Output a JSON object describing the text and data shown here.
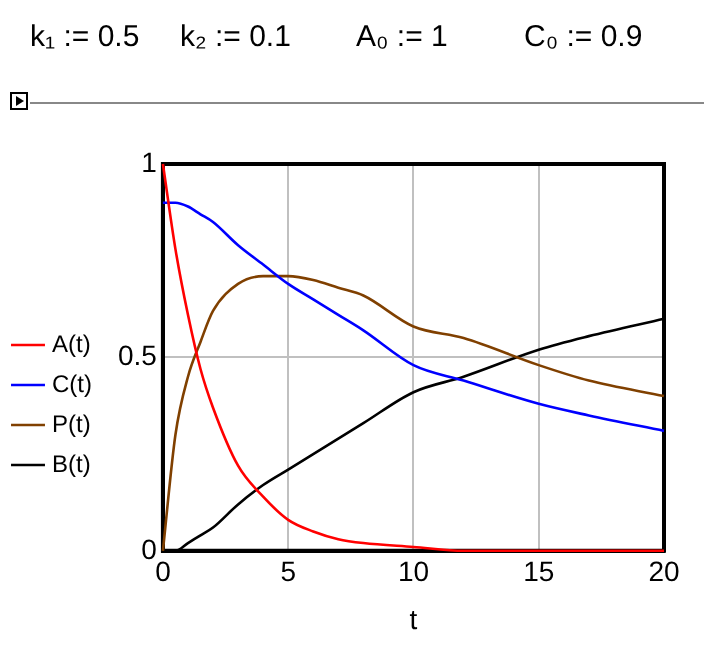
{
  "chart_data": {
    "type": "line",
    "xlabel": "t",
    "annotations": [
      "k₁ := 0.5",
      "k₂ := 0.1",
      "A₀ := 1",
      "C₀ := 0.9"
    ],
    "x": [
      0,
      0.5,
      1,
      1.5,
      2,
      3,
      4,
      5,
      6,
      7,
      8,
      10,
      12,
      15,
      17,
      20
    ],
    "series": [
      {
        "name": "A(t)",
        "color": "#ff0000",
        "values": [
          1,
          0.78,
          0.61,
          0.47,
          0.37,
          0.22,
          0.14,
          0.08,
          0.05,
          0.03,
          0.02,
          0.01,
          0,
          0,
          0,
          0
        ]
      },
      {
        "name": "C(t)",
        "color": "#0000ff",
        "values": [
          0.9,
          0.9,
          0.89,
          0.87,
          0.85,
          0.79,
          0.74,
          0.69,
          0.65,
          0.61,
          0.57,
          0.48,
          0.44,
          0.38,
          0.35,
          0.31
        ]
      },
      {
        "name": "P(t)",
        "color": "#804000",
        "values": [
          0,
          0.3,
          0.45,
          0.54,
          0.62,
          0.69,
          0.71,
          0.71,
          0.7,
          0.68,
          0.66,
          0.58,
          0.55,
          0.48,
          0.44,
          0.4
        ]
      },
      {
        "name": "B(t)",
        "color": "#000000",
        "values": [
          0,
          0,
          0.02,
          0.04,
          0.06,
          0.12,
          0.17,
          0.21,
          0.25,
          0.29,
          0.33,
          0.41,
          0.45,
          0.52,
          0.555,
          0.6
        ]
      }
    ],
    "xlim": [
      0,
      20
    ],
    "xticks": [
      0,
      5,
      10,
      15,
      20
    ],
    "ylim": [
      0,
      1
    ],
    "yticks": [
      0,
      0.5,
      1
    ],
    "grid": true,
    "legend": "left",
    "marker": "none",
    "line_style": "solid"
  }
}
